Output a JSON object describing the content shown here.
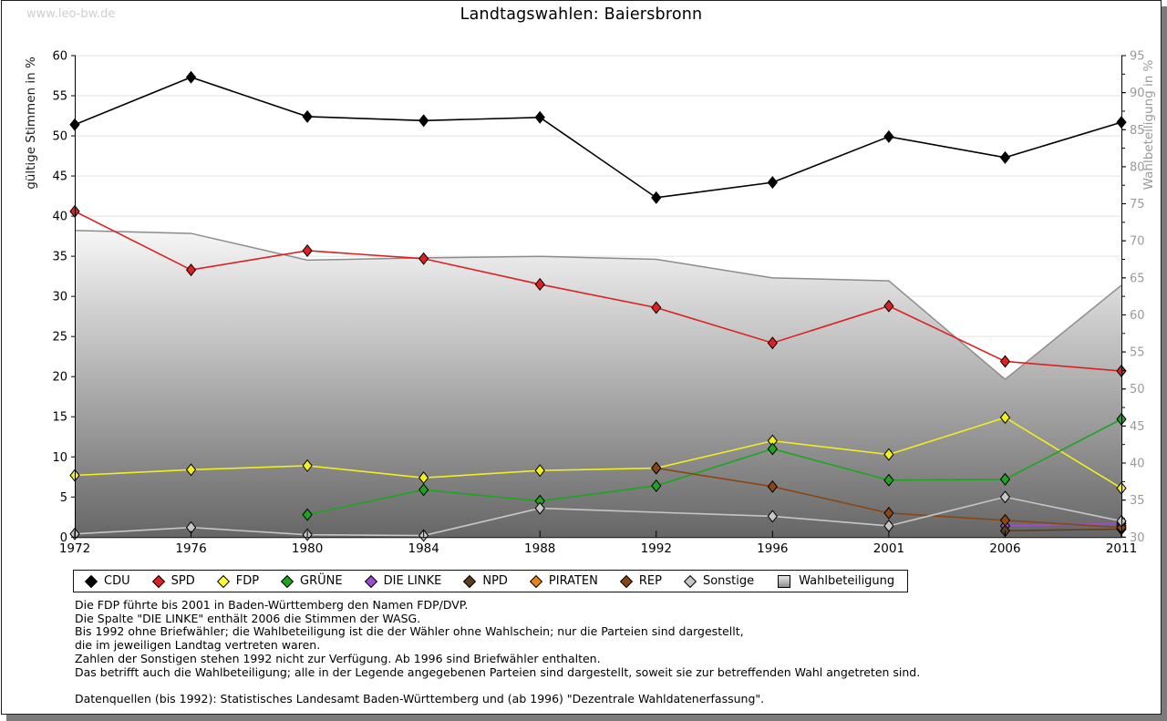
{
  "watermark": "www.leo-bw.de",
  "title": "Landtagswahlen: Baiersbronn",
  "chart_data": {
    "type": "line",
    "x": [
      1972,
      1976,
      1980,
      1984,
      1988,
      1992,
      1996,
      2001,
      2006,
      2011
    ],
    "left_axis": {
      "label": "gültige Stimmen in %",
      "min": 0,
      "max": 60,
      "ticks": [
        0,
        5,
        10,
        15,
        20,
        25,
        30,
        35,
        40,
        45,
        50,
        55,
        60
      ]
    },
    "right_axis": {
      "label": "Wahlbeteiligung in %",
      "min": 30,
      "max": 95,
      "ticks": [
        30,
        35,
        40,
        45,
        50,
        55,
        60,
        65,
        70,
        75,
        80,
        85,
        90,
        95
      ],
      "minor_step": 2.5
    },
    "grid": "horizontal",
    "legend_position": "bottom",
    "series": [
      {
        "name": "Wahlbeteiligung",
        "kind": "area",
        "axis": "right",
        "line_color": "#8c8c8c",
        "values": [
          71.4,
          71.0,
          67.4,
          67.7,
          67.9,
          67.5,
          65.0,
          64.6,
          51.3,
          64.0
        ]
      },
      {
        "name": "CDU",
        "kind": "line",
        "axis": "left",
        "color": "#000000",
        "values": [
          51.4,
          57.3,
          52.4,
          51.9,
          52.3,
          42.3,
          44.2,
          49.9,
          47.3,
          51.7
        ]
      },
      {
        "name": "SPD",
        "kind": "line",
        "axis": "left",
        "color": "#dd2020",
        "values": [
          40.6,
          33.3,
          35.7,
          34.7,
          31.5,
          28.6,
          24.2,
          28.8,
          21.9,
          20.7
        ]
      },
      {
        "name": "FDP",
        "kind": "line",
        "axis": "left",
        "color": "#f2ee22",
        "values": [
          7.7,
          8.4,
          8.9,
          7.4,
          8.3,
          8.6,
          12.0,
          10.3,
          14.9,
          6.1
        ]
      },
      {
        "name": "GRÜNE",
        "kind": "line",
        "axis": "left",
        "color": "#1ea51e",
        "values": [
          null,
          null,
          2.8,
          5.9,
          4.5,
          6.4,
          11.0,
          7.1,
          7.2,
          14.7
        ]
      },
      {
        "name": "DIE LINKE",
        "kind": "line",
        "axis": "left",
        "color": "#9b4fd0",
        "values": [
          null,
          null,
          null,
          null,
          null,
          null,
          null,
          null,
          1.4,
          1.7
        ]
      },
      {
        "name": "NPD",
        "kind": "line",
        "axis": "left",
        "color": "#5f3c1c",
        "values": [
          null,
          null,
          null,
          null,
          null,
          null,
          null,
          null,
          0.8,
          1.0
        ]
      },
      {
        "name": "PIRATEN",
        "kind": "line",
        "axis": "left",
        "color": "#ee8311",
        "values": [
          null,
          null,
          null,
          null,
          null,
          null,
          null,
          null,
          null,
          1.4
        ]
      },
      {
        "name": "REP",
        "kind": "line",
        "axis": "left",
        "color": "#8b4513",
        "values": [
          null,
          null,
          null,
          null,
          null,
          8.6,
          6.3,
          3.0,
          2.1,
          1.2
        ]
      },
      {
        "name": "Sonstige",
        "kind": "line",
        "axis": "left",
        "color": "#c6c6c6",
        "values": [
          0.4,
          1.2,
          0.3,
          0.2,
          3.6,
          null,
          2.6,
          1.4,
          5.0,
          2.0
        ]
      }
    ]
  },
  "legend": {
    "items": [
      {
        "label": "CDU",
        "color": "#000000",
        "shape": "diamond"
      },
      {
        "label": "SPD",
        "color": "#dd2020",
        "shape": "diamond"
      },
      {
        "label": "FDP",
        "color": "#ffff33",
        "shape": "diamond"
      },
      {
        "label": "GRÜNE",
        "color": "#1ea51e",
        "shape": "diamond"
      },
      {
        "label": "DIE LINKE",
        "color": "#9b4fd0",
        "shape": "diamond"
      },
      {
        "label": "NPD",
        "color": "#5f3c1c",
        "shape": "diamond"
      },
      {
        "label": "PIRATEN",
        "color": "#ee8311",
        "shape": "diamond"
      },
      {
        "label": "REP",
        "color": "#8b4513",
        "shape": "diamond"
      },
      {
        "label": "Sonstige",
        "color": "#c6c6c6",
        "shape": "diamond"
      },
      {
        "label": "Wahlbeteiligung",
        "color": "#b5b5b5",
        "shape": "square"
      }
    ]
  },
  "footnotes": {
    "lines": [
      "Die FDP führte bis 2001 in Baden-Württemberg den Namen FDP/DVP.",
      "Die Spalte \"DIE LINKE\" enthält 2006 die Stimmen der WASG.",
      "Bis 1992 ohne Briefwähler; die Wahlbeteiligung ist die der Wähler ohne Wahlschein; nur die Parteien sind dargestellt,",
      "die im jeweiligen Landtag vertreten waren.",
      "Zahlen der Sonstigen stehen 1992 nicht zur Verfügung. Ab 1996 sind Briefwähler enthalten.",
      "Das betrifft auch die Wahlbeteiligung; alle in der Legende angegebenen Parteien sind dargestellt, soweit sie zur betreffenden Wahl angetreten sind."
    ],
    "source": "Datenquellen (bis 1992): Statistisches Landesamt Baden-Württemberg und (ab 1996) \"Dezentrale Wahldatenerfassung\"."
  },
  "colors": {
    "grid": "#e2e2e2",
    "axis": "#000000",
    "right_tick_text": "#9a9a9a",
    "left_tick_text": "#000000",
    "area_gradient_top": "#f8f8f8",
    "area_gradient_bottom": "#666666",
    "panel_shadow": "#7b7b7b",
    "watermark": "#cfcfcf"
  }
}
